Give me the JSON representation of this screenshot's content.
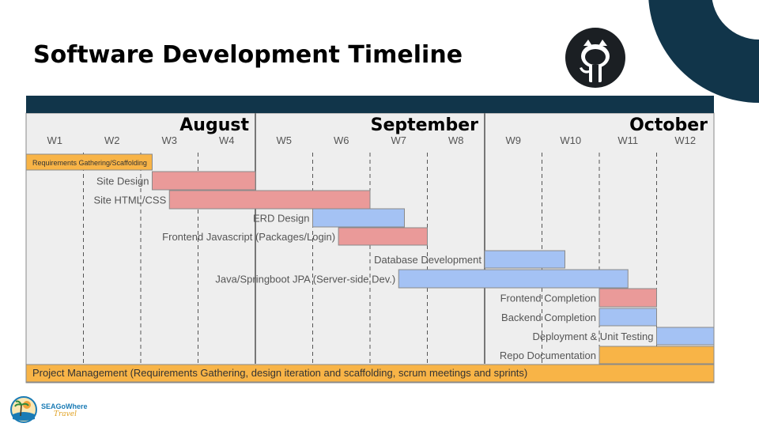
{
  "slide": {
    "title": "Software Development Timeline"
  },
  "brand": {
    "name": "SEAGoWhere",
    "tagline": "Travel"
  },
  "colors": {
    "navy": "#11354a",
    "panel": "#eeeeee",
    "orange": "#f8b447",
    "red": "#ea9a99",
    "blue": "#a4c2f4"
  },
  "chart_data": {
    "type": "gantt",
    "months": [
      {
        "name": "August",
        "weeks": [
          "W1",
          "W2",
          "W3",
          "W4"
        ]
      },
      {
        "name": "September",
        "weeks": [
          "W5",
          "W6",
          "W7",
          "W8"
        ]
      },
      {
        "name": "October",
        "weeks": [
          "W9",
          "W10",
          "W11",
          "W12"
        ]
      }
    ],
    "tasks": [
      {
        "label": "Requirements Gathering/Scaffolding",
        "start": 0,
        "end": 2.2,
        "color": "orange",
        "label_inside": true
      },
      {
        "label": "Site Design",
        "start": 2.2,
        "end": 4.0,
        "color": "red"
      },
      {
        "label": "Site HTML/CSS",
        "start": 2.5,
        "end": 6.0,
        "color": "red"
      },
      {
        "label": "ERD Design",
        "start": 5.0,
        "end": 6.6,
        "color": "blue"
      },
      {
        "label": "Frontend Javascript (Packages/Login)",
        "start": 5.45,
        "end": 7.0,
        "color": "red"
      },
      {
        "label": "Database Development",
        "start": 8.0,
        "end": 9.4,
        "color": "blue"
      },
      {
        "label": "Java/Springboot JPA (Server-side Dev.)",
        "start": 6.5,
        "end": 10.5,
        "color": "blue"
      },
      {
        "label": "Frontend Completion",
        "start": 10.0,
        "end": 11.0,
        "color": "red"
      },
      {
        "label": "Backend Completion",
        "start": 10.0,
        "end": 11.0,
        "color": "blue"
      },
      {
        "label": "Deployment & Unit Testing",
        "start": 11.0,
        "end": 12.0,
        "color": "blue"
      },
      {
        "label": "Repo Documentation",
        "start": 10.0,
        "end": 12.0,
        "color": "orange"
      },
      {
        "label": "Project Management (Requirements Gathering, design iteration and scaffolding, scrum meetings and sprints)",
        "start": 0,
        "end": 12.0,
        "color": "orange",
        "label_inside": true
      }
    ]
  }
}
